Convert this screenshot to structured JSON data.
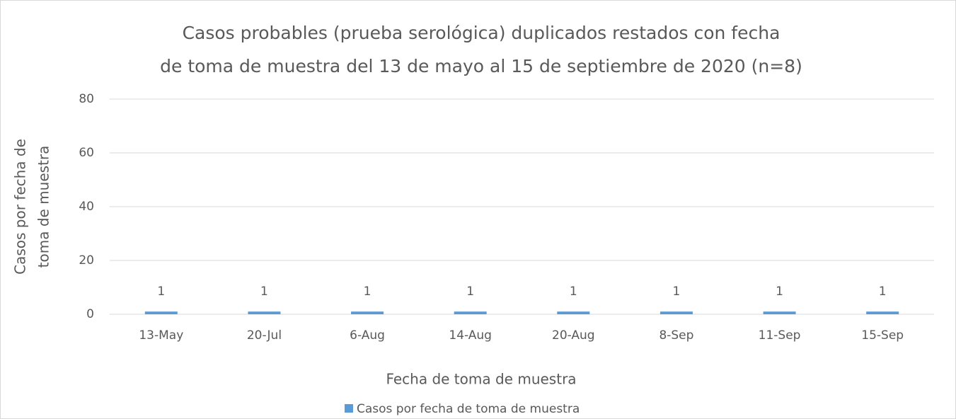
{
  "chart_data": {
    "type": "bar",
    "title": [
      "Casos probables (prueba serológica) duplicados restados con fecha",
      "de toma de muestra del 13 de mayo al 15 de septiembre de 2020 (n=8)"
    ],
    "y_label": [
      "Casos por fecha de",
      "toma de muestra"
    ],
    "x_label": "Fecha de toma de muestra",
    "categories": [
      "13-May",
      "20-Jul",
      "6-Aug",
      "14-Aug",
      "20-Aug",
      "8-Sep",
      "11-Sep",
      "15-Sep"
    ],
    "series": [
      {
        "name": "Casos por fecha de toma de muestra",
        "color": "#5b9bd5",
        "values": [
          1,
          1,
          1,
          1,
          1,
          1,
          1,
          1
        ]
      }
    ],
    "ylim": [
      0,
      80
    ],
    "yticks": [
      0,
      20,
      40,
      60,
      80
    ],
    "grid": true,
    "legend": "bottom"
  }
}
